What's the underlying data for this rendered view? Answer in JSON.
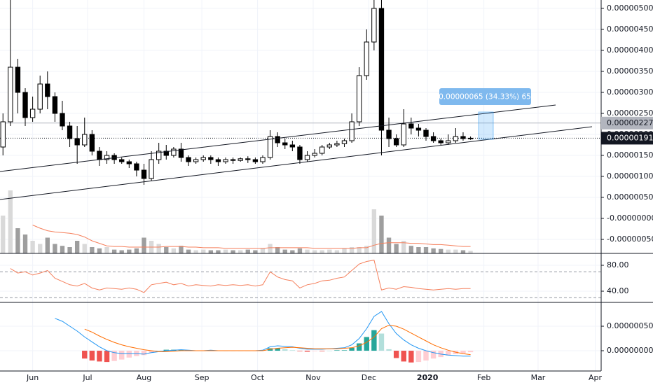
{
  "chart_data": {
    "type": "candlestick",
    "open": [
      1.7e-06,
      2.3e-06,
      3.6e-06,
      3e-06,
      2.4e-06,
      2.6e-06,
      3.2e-06,
      2.9e-06,
      2.5e-06,
      2.2e-06,
      1.9e-06,
      1.75e-06,
      2e-06,
      1.6e-06,
      1.4e-06,
      1.5e-06,
      1.4e-06,
      1.35e-06,
      1.3e-06,
      1.15e-06,
      9.5e-07,
      1.4e-06,
      1.6e-06,
      1.5e-06,
      1.65e-06,
      1.45e-06,
      1.35e-06,
      1.4e-06,
      1.45e-06,
      1.4e-06,
      1.35e-06,
      1.4e-06,
      1.38e-06,
      1.42e-06,
      1.4e-06,
      1.35e-06,
      1.45e-06,
      1.95e-06,
      1.8e-06,
      1.75e-06,
      1.7e-06,
      1.4e-06,
      1.5e-06,
      1.55e-06,
      1.7e-06,
      1.75e-06,
      1.78e-06,
      1.85e-06,
      2.3e-06,
      3.4e-06,
      4.2e-06,
      5e-06,
      2.1e-06,
      1.9e-06,
      1.75e-06,
      2.25e-06,
      2.15e-06,
      2.1e-06,
      1.95e-06,
      1.85e-06,
      1.8e-06,
      1.85e-06,
      1.95e-06,
      1.9e-06
    ],
    "high": [
      2.5e-06,
      5.2e-06,
      3.8e-06,
      3.1e-06,
      2.9e-06,
      3.4e-06,
      3.5e-06,
      3e-06,
      2.8e-06,
      2.3e-06,
      2.2e-06,
      2.4e-06,
      2.1e-06,
      1.7e-06,
      1.6e-06,
      1.55e-06,
      1.45e-06,
      1.4e-06,
      1.35e-06,
      1.3e-06,
      1.6e-06,
      1.8e-06,
      1.75e-06,
      1.7e-06,
      1.8e-06,
      1.5e-06,
      1.45e-06,
      1.5e-06,
      1.5e-06,
      1.45e-06,
      1.45e-06,
      1.45e-06,
      1.45e-06,
      1.48e-06,
      1.45e-06,
      1.5e-06,
      2.1e-06,
      2.05e-06,
      1.9e-06,
      1.85e-06,
      1.75e-06,
      1.6e-06,
      1.65e-06,
      1.75e-06,
      1.8e-06,
      1.85e-06,
      1.9e-06,
      2.5e-06,
      3.6e-06,
      4.5e-06,
      5.3e-06,
      5.2e-06,
      2.4e-06,
      2e-06,
      2.6e-06,
      2.4e-06,
      2.25e-06,
      2.15e-06,
      2.05e-06,
      1.9e-06,
      2e-06,
      2.15e-06,
      2.05e-06,
      1.95e-06
    ],
    "low": [
      1.5e-06,
      2.2e-06,
      2.5e-06,
      2.2e-06,
      2.3e-06,
      2.5e-06,
      2.6e-06,
      2.3e-06,
      2.1e-06,
      1.7e-06,
      1.3e-06,
      1.7e-06,
      1.5e-06,
      1.25e-06,
      1.3e-06,
      1.3e-06,
      1.3e-06,
      1.2e-06,
      1e-06,
      8e-07,
      9e-07,
      1.3e-06,
      1.4e-06,
      1.45e-06,
      1.35e-06,
      1.25e-06,
      1.3e-06,
      1.35e-06,
      1.3e-06,
      1.25e-06,
      1.3e-06,
      1.3e-06,
      1.35e-06,
      1.32e-06,
      1.3e-06,
      1.3e-06,
      1.4e-06,
      1.7e-06,
      1.65e-06,
      1.6e-06,
      1.3e-06,
      1.35e-06,
      1.45e-06,
      1.5e-06,
      1.65e-06,
      1.7e-06,
      1.7e-06,
      1.8e-06,
      2.2e-06,
      3.3e-06,
      4e-06,
      1.5e-06,
      1.7e-06,
      1.7e-06,
      1.7e-06,
      2e-06,
      1.95e-06,
      1.85e-06,
      1.8e-06,
      1.75e-06,
      1.75e-06,
      1.8e-06,
      1.85e-06,
      1.87e-06
    ],
    "close": [
      2.3e-06,
      3.6e-06,
      3e-06,
      2.4e-06,
      2.6e-06,
      3.2e-06,
      2.9e-06,
      2.5e-06,
      2.2e-06,
      1.9e-06,
      1.75e-06,
      2e-06,
      1.6e-06,
      1.4e-06,
      1.5e-06,
      1.4e-06,
      1.35e-06,
      1.3e-06,
      1.15e-06,
      9.5e-07,
      1.4e-06,
      1.6e-06,
      1.5e-06,
      1.65e-06,
      1.45e-06,
      1.35e-06,
      1.4e-06,
      1.45e-06,
      1.4e-06,
      1.35e-06,
      1.4e-06,
      1.38e-06,
      1.42e-06,
      1.4e-06,
      1.35e-06,
      1.45e-06,
      1.95e-06,
      1.8e-06,
      1.75e-06,
      1.7e-06,
      1.4e-06,
      1.5e-06,
      1.55e-06,
      1.7e-06,
      1.75e-06,
      1.78e-06,
      1.85e-06,
      2.3e-06,
      3.4e-06,
      4.2e-06,
      5e-06,
      2.1e-06,
      1.9e-06,
      1.75e-06,
      2.25e-06,
      2.15e-06,
      2.1e-06,
      1.95e-06,
      1.85e-06,
      1.8e-06,
      1.85e-06,
      1.95e-06,
      1.9e-06,
      1.91e-06
    ],
    "up_color": "#ffffff",
    "down_color": "#000000",
    "border_color": "#000000",
    "xlim": [
      -0.4,
      80.6
    ],
    "xticks": [
      {
        "value": 4,
        "label": "Jun"
      },
      {
        "value": 11.4,
        "label": "Jul"
      },
      {
        "value": 19,
        "label": "Aug"
      },
      {
        "value": 26.8,
        "label": "Sep"
      },
      {
        "value": 34.3,
        "label": "Oct"
      },
      {
        "value": 41.8,
        "label": "Nov"
      },
      {
        "value": 49.3,
        "label": "Dec"
      },
      {
        "value": 57.2,
        "label": "2020"
      },
      {
        "value": 64.8,
        "label": "Feb"
      },
      {
        "value": 72.1,
        "label": "Mar"
      },
      {
        "value": 79.8,
        "label": "Apr"
      }
    ],
    "ylim": [
      -8.33e-07,
      5.2e-06
    ],
    "yticks": [
      {
        "value": 5e-06,
        "label": "0.00000500"
      },
      {
        "value": 4.5e-06,
        "label": "0.00000450"
      },
      {
        "value": 4e-06,
        "label": "0.00000400"
      },
      {
        "value": 3.5e-06,
        "label": "0.00000350"
      },
      {
        "value": 3e-06,
        "label": "0.00000300"
      },
      {
        "value": 2.5e-06,
        "label": "0.00000250"
      },
      {
        "value": 2e-06,
        "label": "0.00000200"
      },
      {
        "value": 1.5e-06,
        "label": "0.00000150"
      },
      {
        "value": 1e-06,
        "label": "0.00000100"
      },
      {
        "value": 5e-07,
        "label": "0.00000050"
      },
      {
        "value": 0,
        "label": "-0.00000000"
      },
      {
        "value": -5e-07,
        "label": "-0.00000050"
      }
    ],
    "grid": true,
    "price_lines": [
      {
        "value": 2.27e-06,
        "label": "0.00000227",
        "color": "#b2b5be",
        "text_color": "#131722"
      },
      {
        "value": 1.91e-06,
        "label": "0.00000191",
        "color": "#131722",
        "text_color": "#ffffff"
      }
    ],
    "annotation": "0.00000065 (34.33%) 65",
    "volume": {
      "values": [
        60,
        100,
        40,
        30,
        20,
        15,
        25,
        15,
        12,
        10,
        20,
        15,
        10,
        8,
        10,
        6,
        5,
        6,
        8,
        25,
        20,
        15,
        10,
        8,
        12,
        6,
        5,
        6,
        5,
        5,
        6,
        5,
        5,
        6,
        5,
        8,
        15,
        10,
        6,
        5,
        8,
        6,
        5,
        5,
        6,
        5,
        8,
        10,
        10,
        12,
        70,
        60,
        25,
        15,
        20,
        12,
        10,
        10,
        8,
        7,
        6,
        6,
        5,
        4
      ],
      "ma": [
        null,
        null,
        null,
        null,
        45,
        40,
        36,
        34,
        33,
        32,
        30,
        26,
        20,
        16,
        12,
        11,
        11,
        10,
        10,
        10,
        10,
        10,
        11,
        11,
        11,
        10,
        10,
        9,
        9,
        9,
        8,
        8,
        8,
        8,
        8,
        8,
        9,
        9,
        9,
        9,
        9,
        9,
        8,
        8,
        8,
        8,
        8,
        8,
        9,
        9,
        13,
        16,
        17,
        17,
        17,
        16,
        16,
        15,
        14,
        14,
        13,
        12,
        11,
        11
      ],
      "up_color": "#d9d9d9",
      "down_color": "#9e9e9e",
      "ma_color": "#f57f5b"
    },
    "rsi": {
      "values": [
        null,
        75,
        68,
        70,
        65,
        68,
        72,
        60,
        55,
        50,
        48,
        52,
        45,
        42,
        45,
        44,
        43,
        45,
        43,
        38,
        50,
        52,
        54,
        50,
        52,
        48,
        50,
        49,
        48,
        50,
        49,
        50,
        49,
        50,
        48,
        50,
        70,
        62,
        58,
        56,
        45,
        50,
        52,
        56,
        57,
        60,
        62,
        72,
        82,
        86,
        88,
        42,
        45,
        43,
        47,
        46,
        44,
        43,
        42,
        43,
        44,
        43,
        44,
        44
      ],
      "color": "#f57f5b",
      "bands": [
        70,
        30
      ],
      "ylim": [
        22.7,
        98.4
      ],
      "yticks": [
        {
          "value": 80,
          "label": "80.00"
        },
        {
          "value": 40,
          "label": "40.00"
        }
      ]
    },
    "macd": {
      "macd": [
        null,
        null,
        null,
        null,
        null,
        null,
        null,
        6.6e-07,
        6e-07,
        5e-07,
        4e-07,
        2.8e-07,
        1.8e-07,
        8e-08,
        0,
        -4e-08,
        -6e-08,
        -6e-08,
        -6e-08,
        -7e-08,
        -4e-08,
        -2e-08,
        0,
        1e-08,
        2e-08,
        1e-08,
        0,
        0,
        1e-08,
        0,
        0,
        0,
        0,
        0,
        0,
        1e-08,
        8e-08,
        1e-07,
        9e-08,
        8e-08,
        5e-08,
        3e-08,
        3e-08,
        3e-08,
        4e-08,
        5e-08,
        6e-08,
        1.2e-07,
        2.5e-07,
        4.5e-07,
        7e-07,
        8e-07,
        5.5e-07,
        3.5e-07,
        2.2e-07,
        1.2e-07,
        5e-08,
        0,
        -4e-08,
        -7e-08,
        -9e-08,
        -1e-07,
        -1.1e-07,
        -1.1e-07
      ],
      "signal": [
        null,
        null,
        null,
        null,
        null,
        null,
        null,
        null,
        null,
        null,
        null,
        4.4e-07,
        3.8e-07,
        3e-07,
        2.3e-07,
        1.7e-07,
        1.2e-07,
        8e-08,
        5e-08,
        2e-08,
        0,
        -2e-08,
        -2e-08,
        -1e-08,
        0,
        0,
        0,
        0,
        0,
        0,
        0,
        0,
        0,
        0,
        0,
        0,
        3e-08,
        5e-08,
        6e-08,
        7e-08,
        6e-08,
        5e-08,
        4e-08,
        4e-08,
        4e-08,
        4e-08,
        5e-08,
        6e-08,
        1e-07,
        1.7e-07,
        2.8e-07,
        4.5e-07,
        5.2e-07,
        5e-07,
        4.4e-07,
        3.6e-07,
        2.8e-07,
        2e-07,
        1.2e-07,
        6e-08,
        1e-08,
        -3e-08,
        -6e-08,
        -8e-08
      ],
      "histogram": [
        null,
        null,
        null,
        null,
        null,
        null,
        null,
        null,
        null,
        null,
        null,
        -1.6e-07,
        -2e-07,
        -2.2e-07,
        -2.3e-07,
        -2.1e-07,
        -1.8e-07,
        -1.4e-07,
        -1.1e-07,
        -9e-08,
        -4e-08,
        0,
        2e-08,
        2e-08,
        2e-08,
        1e-08,
        0,
        0,
        1e-08,
        0,
        0,
        0,
        0,
        0,
        0,
        1e-08,
        5e-08,
        5e-08,
        3e-08,
        1e-08,
        -1e-08,
        -2e-08,
        -1e-08,
        -1e-08,
        0,
        1e-08,
        1e-08,
        6e-08,
        1.5e-07,
        2.8e-07,
        4.2e-07,
        3.5e-07,
        3e-08,
        -1.5e-07,
        -2.2e-07,
        -2.4e-07,
        -2.3e-07,
        -2e-07,
        -1.6e-07,
        -1.3e-07,
        -1e-07,
        -7e-08,
        -5e-08,
        -3e-08
      ],
      "macd_color": "#2196f3",
      "signal_color": "#ff6d00",
      "histogram_colors": [
        "#26a69a",
        "#b2dfdb",
        "#ffcdd2",
        "#ef5350"
      ],
      "ylim": [
        -4.14e-07,
        9.86e-07
      ],
      "yticks": [
        {
          "value": 5e-07,
          "label": "0.00000050"
        },
        {
          "value": 0,
          "label": "0.00000000"
        }
      ]
    }
  }
}
